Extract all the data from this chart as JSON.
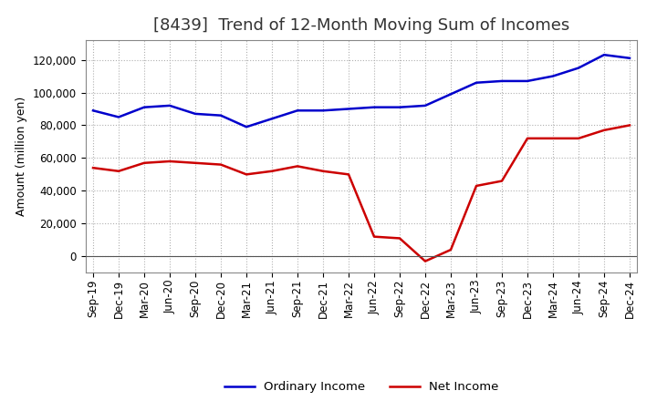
{
  "title": "[8439]  Trend of 12-Month Moving Sum of Incomes",
  "ylabel": "Amount (million yen)",
  "background_color": "#ffffff",
  "grid_color": "#b0b0b0",
  "ordinary_income_color": "#0000cc",
  "net_income_color": "#cc0000",
  "ordinary_income_label": "Ordinary Income",
  "net_income_label": "Net Income",
  "x_labels": [
    "Sep-19",
    "Dec-19",
    "Mar-20",
    "Jun-20",
    "Sep-20",
    "Dec-20",
    "Mar-21",
    "Jun-21",
    "Sep-21",
    "Dec-21",
    "Mar-22",
    "Jun-22",
    "Sep-22",
    "Dec-22",
    "Mar-23",
    "Jun-23",
    "Sep-23",
    "Dec-23",
    "Mar-24",
    "Jun-24",
    "Sep-24",
    "Dec-24"
  ],
  "ordinary_income": [
    89000,
    85000,
    91000,
    92000,
    87000,
    86000,
    79000,
    84000,
    89000,
    89000,
    90000,
    91000,
    91000,
    92000,
    99000,
    106000,
    107000,
    107000,
    110000,
    115000,
    123000,
    121000
  ],
  "net_income_raw": [
    54000,
    52000,
    57000,
    58000,
    57000,
    56000,
    50000,
    52000,
    55000,
    52000,
    50000,
    12000,
    11000,
    -3000,
    4000,
    43000,
    46000,
    72000,
    72000,
    72000,
    77000,
    80000
  ],
  "ylim": [
    -10000,
    132000
  ],
  "yticks": [
    0,
    20000,
    40000,
    60000,
    80000,
    100000,
    120000
  ],
  "title_fontsize": 13,
  "ylabel_fontsize": 9,
  "tick_fontsize": 8.5,
  "legend_fontsize": 9.5
}
